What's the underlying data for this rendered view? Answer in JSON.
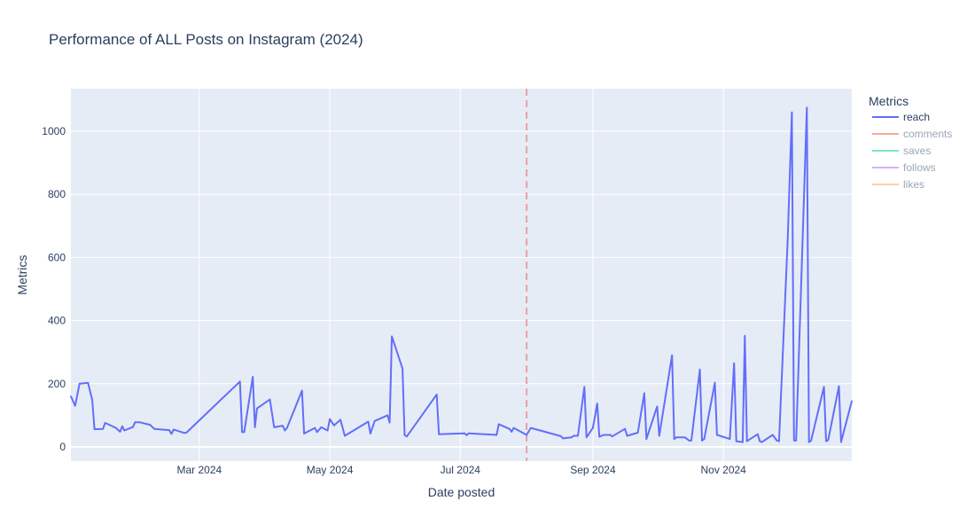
{
  "chart_data": {
    "type": "line",
    "title": "Performance of ALL Posts on Instagram (2024)",
    "xlabel": "Date posted",
    "ylabel": "Metrics",
    "x_range": [
      "2024-01-01",
      "2024-12-31"
    ],
    "ylim": [
      -45,
      1135
    ],
    "x_ticks": [
      {
        "date": "2024-03-01",
        "label": "Mar 2024"
      },
      {
        "date": "2024-05-01",
        "label": "May 2024"
      },
      {
        "date": "2024-07-01",
        "label": "Jul 2024"
      },
      {
        "date": "2024-09-01",
        "label": "Sep 2024"
      },
      {
        "date": "2024-11-01",
        "label": "Nov 2024"
      }
    ],
    "y_ticks": [
      0,
      200,
      400,
      600,
      800,
      1000
    ],
    "vline": {
      "date": "2024-08-01",
      "color": "#e8a0a8",
      "dash": true
    },
    "grid": true,
    "plot_bgcolor": "#e5ecf6",
    "legend": {
      "title": "Metrics",
      "position": "right",
      "items": [
        {
          "name": "reach",
          "color": "#636efa",
          "visible": true
        },
        {
          "name": "comments",
          "color": "#ef553b",
          "visible": false
        },
        {
          "name": "saves",
          "color": "#00cc96",
          "visible": false
        },
        {
          "name": "follows",
          "color": "#ab63fa",
          "visible": false
        },
        {
          "name": "likes",
          "color": "#ffa15a",
          "visible": false
        }
      ]
    },
    "series": [
      {
        "name": "reach",
        "color": "#636efa",
        "points": [
          [
            "2024-01-01",
            160
          ],
          [
            "2024-01-03",
            130
          ],
          [
            "2024-01-05",
            200
          ],
          [
            "2024-01-09",
            203
          ],
          [
            "2024-01-11",
            148
          ],
          [
            "2024-01-12",
            56
          ],
          [
            "2024-01-16",
            57
          ],
          [
            "2024-01-17",
            76
          ],
          [
            "2024-01-22",
            60
          ],
          [
            "2024-01-24",
            48
          ],
          [
            "2024-01-25",
            65
          ],
          [
            "2024-01-26",
            52
          ],
          [
            "2024-01-30",
            63
          ],
          [
            "2024-01-31",
            78
          ],
          [
            "2024-02-02",
            78
          ],
          [
            "2024-02-07",
            70
          ],
          [
            "2024-02-09",
            57
          ],
          [
            "2024-02-16",
            53
          ],
          [
            "2024-02-17",
            41
          ],
          [
            "2024-02-18",
            55
          ],
          [
            "2024-02-23",
            44
          ],
          [
            "2024-02-24",
            45
          ],
          [
            "2024-03-20",
            207
          ],
          [
            "2024-03-21",
            47
          ],
          [
            "2024-03-22",
            47
          ],
          [
            "2024-03-26",
            222
          ],
          [
            "2024-03-27",
            62
          ],
          [
            "2024-03-28",
            122
          ],
          [
            "2024-04-03",
            150
          ],
          [
            "2024-04-05",
            62
          ],
          [
            "2024-04-09",
            67
          ],
          [
            "2024-04-10",
            52
          ],
          [
            "2024-04-11",
            60
          ],
          [
            "2024-04-18",
            178
          ],
          [
            "2024-04-19",
            42
          ],
          [
            "2024-04-24",
            60
          ],
          [
            "2024-04-25",
            47
          ],
          [
            "2024-04-27",
            62
          ],
          [
            "2024-04-30",
            52
          ],
          [
            "2024-05-01",
            88
          ],
          [
            "2024-05-03",
            68
          ],
          [
            "2024-05-06",
            86
          ],
          [
            "2024-05-08",
            35
          ],
          [
            "2024-05-19",
            80
          ],
          [
            "2024-05-20",
            42
          ],
          [
            "2024-05-22",
            82
          ],
          [
            "2024-05-28",
            100
          ],
          [
            "2024-05-29",
            77
          ],
          [
            "2024-05-30",
            350
          ],
          [
            "2024-06-04",
            248
          ],
          [
            "2024-06-05",
            37
          ],
          [
            "2024-06-06",
            33
          ],
          [
            "2024-06-20",
            166
          ],
          [
            "2024-06-21",
            40
          ],
          [
            "2024-07-03",
            43
          ],
          [
            "2024-07-04",
            37
          ],
          [
            "2024-07-05",
            43
          ],
          [
            "2024-07-18",
            38
          ],
          [
            "2024-07-19",
            72
          ],
          [
            "2024-07-24",
            57
          ],
          [
            "2024-07-25",
            48
          ],
          [
            "2024-07-26",
            60
          ],
          [
            "2024-08-01",
            38
          ],
          [
            "2024-08-03",
            60
          ],
          [
            "2024-08-17",
            34
          ],
          [
            "2024-08-18",
            27
          ],
          [
            "2024-08-22",
            30
          ],
          [
            "2024-08-23",
            35
          ],
          [
            "2024-08-25",
            35
          ],
          [
            "2024-08-28",
            190
          ],
          [
            "2024-08-29",
            30
          ],
          [
            "2024-09-01",
            60
          ],
          [
            "2024-09-03",
            137
          ],
          [
            "2024-09-04",
            32
          ],
          [
            "2024-09-06",
            38
          ],
          [
            "2024-09-09",
            38
          ],
          [
            "2024-09-10",
            33
          ],
          [
            "2024-09-16",
            57
          ],
          [
            "2024-09-17",
            35
          ],
          [
            "2024-09-22",
            45
          ],
          [
            "2024-09-25",
            170
          ],
          [
            "2024-09-26",
            25
          ],
          [
            "2024-10-01",
            128
          ],
          [
            "2024-10-02",
            35
          ],
          [
            "2024-10-08",
            290
          ],
          [
            "2024-10-09",
            25
          ],
          [
            "2024-10-10",
            30
          ],
          [
            "2024-10-14",
            30
          ],
          [
            "2024-10-16",
            20
          ],
          [
            "2024-10-17",
            20
          ],
          [
            "2024-10-21",
            245
          ],
          [
            "2024-10-22",
            20
          ],
          [
            "2024-10-23",
            25
          ],
          [
            "2024-10-28",
            203
          ],
          [
            "2024-10-29",
            38
          ],
          [
            "2024-11-04",
            25
          ],
          [
            "2024-11-06",
            265
          ],
          [
            "2024-11-07",
            18
          ],
          [
            "2024-11-10",
            15
          ],
          [
            "2024-11-11",
            352
          ],
          [
            "2024-11-12",
            18
          ],
          [
            "2024-11-17",
            40
          ],
          [
            "2024-11-18",
            18
          ],
          [
            "2024-11-19",
            15
          ],
          [
            "2024-11-24",
            38
          ],
          [
            "2024-11-26",
            20
          ],
          [
            "2024-11-27",
            18
          ],
          [
            "2024-12-01",
            650
          ],
          [
            "2024-12-03",
            1060
          ],
          [
            "2024-12-04",
            20
          ],
          [
            "2024-12-05",
            20
          ],
          [
            "2024-12-10",
            1075
          ],
          [
            "2024-12-11",
            15
          ],
          [
            "2024-12-12",
            20
          ],
          [
            "2024-12-18",
            190
          ],
          [
            "2024-12-19",
            18
          ],
          [
            "2024-12-20",
            22
          ],
          [
            "2024-12-25",
            192
          ],
          [
            "2024-12-26",
            15
          ],
          [
            "2024-12-31",
            145
          ]
        ]
      }
    ]
  }
}
